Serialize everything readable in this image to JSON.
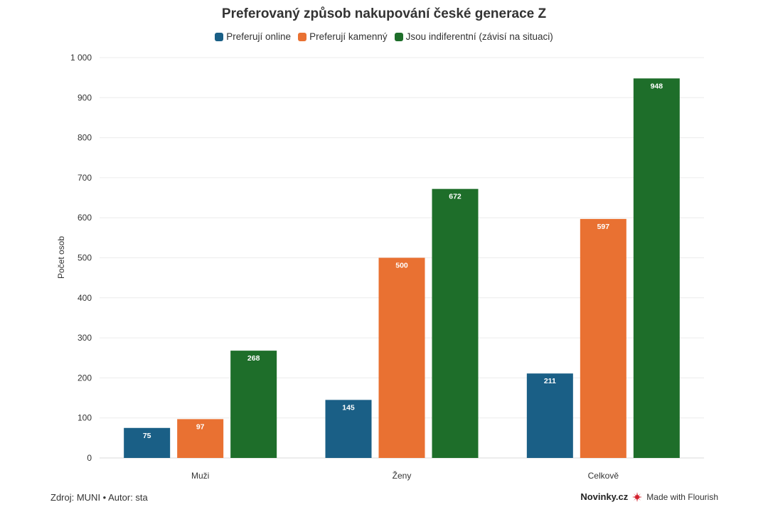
{
  "chart_data": {
    "type": "bar",
    "title": "Preferovaný způsob nakupování české generace Z",
    "xlabel": "",
    "ylabel": "Počet osob",
    "ylim": [
      0,
      1000
    ],
    "yticks": [
      0,
      100,
      200,
      300,
      400,
      500,
      600,
      700,
      800,
      900,
      1000
    ],
    "ytick_labels": [
      "0",
      "100",
      "200",
      "300",
      "400",
      "500",
      "600",
      "700",
      "800",
      "900",
      "1 000"
    ],
    "categories": [
      "Muži",
      "Ženy",
      "Celkově"
    ],
    "series": [
      {
        "name": "Preferují online",
        "color": "#1a5f86",
        "values": [
          75,
          145,
          211
        ]
      },
      {
        "name": "Preferují kamenný",
        "color": "#e97132",
        "values": [
          97,
          500,
          597
        ]
      },
      {
        "name": "Jsou indiferentní (závisí na situaci)",
        "color": "#1e6e2a",
        "values": [
          268,
          672,
          948
        ]
      }
    ],
    "grid": true,
    "legend_position": "top-center"
  },
  "footer": {
    "source": "Zdroj: MUNI • Autor: sta",
    "brand": "Novinky.cz",
    "made_with": "Made with Flourish"
  }
}
